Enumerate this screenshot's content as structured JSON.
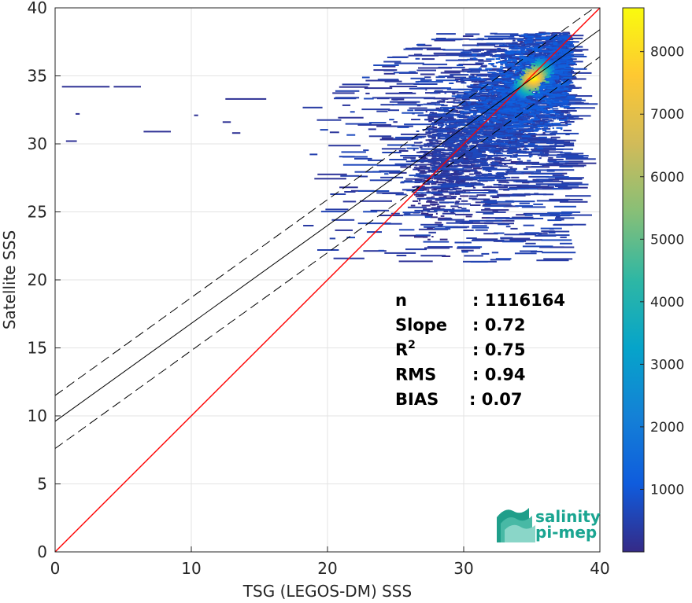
{
  "chart_data": {
    "type": "heatmap",
    "subtype": "2d-density-scatter",
    "xlabel": "TSG (LEGOS-DM) SSS",
    "ylabel": "Satellite SSS",
    "xlim": [
      0,
      40
    ],
    "ylim": [
      0,
      40
    ],
    "xticks": [
      "0",
      "10",
      "20",
      "30",
      "40"
    ],
    "yticks": [
      "0",
      "5",
      "10",
      "15",
      "20",
      "25",
      "30",
      "35",
      "40"
    ],
    "grid": true,
    "colormap": "parula",
    "colorbar": {
      "range": [
        0,
        8700
      ],
      "ticks": [
        "1000",
        "2000",
        "3000",
        "4000",
        "5000",
        "6000",
        "7000",
        "8000"
      ],
      "tick_values": [
        1000,
        2000,
        3000,
        4000,
        5000,
        6000,
        7000,
        8000
      ],
      "colors": [
        "#352a87",
        "#0f5cdd",
        "#1481d6",
        "#06a4ca",
        "#2eb7a4",
        "#87bf77",
        "#d1bb59",
        "#fec832",
        "#f9fb0e"
      ]
    },
    "lines": [
      {
        "role": "identity",
        "color": "#ff0000",
        "slope": 1,
        "intercept": 0
      },
      {
        "role": "regression",
        "color": "#000000",
        "slope": 0.72,
        "intercept": 9.6
      },
      {
        "role": "regression-plus-2rms",
        "color": "#000000",
        "dashed": true,
        "slope": 0.72,
        "intercept": 11.5
      },
      {
        "role": "regression-minus-2rms",
        "color": "#000000",
        "dashed": true,
        "slope": 0.72,
        "intercept": 7.6
      }
    ],
    "density_core": {
      "x": 35,
      "y": 34.8
    },
    "stats": [
      {
        "label": "n",
        "value": ": 1116164"
      },
      {
        "label": "Slope",
        "value": ": 0.72"
      },
      {
        "label": "R",
        "sup": "2",
        "value": ": 0.75"
      },
      {
        "label": "RMS",
        "value": ": 0.94"
      },
      {
        "label": "BIAS",
        "value": ": 0.07"
      }
    ],
    "logo": {
      "line1": "salinity",
      "line2": "pi-mep"
    }
  }
}
